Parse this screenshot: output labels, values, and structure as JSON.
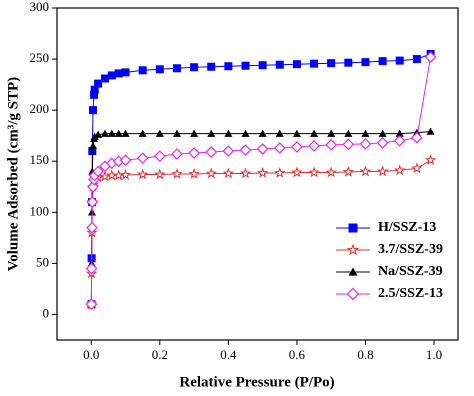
{
  "chart_data": {
    "type": "line",
    "x_label": "Relative Pressure (P/Po)",
    "y_label": "Volume Adsorbed (cm³/g STP)",
    "xlim": [
      -0.1,
      1.07
    ],
    "ylim": [
      -25,
      300
    ],
    "xticks": [
      {
        "value": 0,
        "label": "0.0"
      },
      {
        "value": 0.2,
        "label": "0.2"
      },
      {
        "value": 0.4,
        "label": "0.4"
      },
      {
        "value": 0.6,
        "label": "0.6"
      },
      {
        "value": 0.8,
        "label": "0.8"
      },
      {
        "value": 1,
        "label": "1.0"
      }
    ],
    "yticks": [
      0,
      50,
      100,
      150,
      200,
      250,
      300
    ],
    "legend": "lower right",
    "x": [
      0.0005,
      0.001,
      0.002,
      0.003,
      0.005,
      0.008,
      0.01,
      0.02,
      0.04,
      0.06,
      0.08,
      0.1,
      0.15,
      0.2,
      0.25,
      0.3,
      0.35,
      0.4,
      0.45,
      0.5,
      0.55,
      0.6,
      0.65,
      0.7,
      0.75,
      0.8,
      0.85,
      0.9,
      0.95,
      0.99
    ],
    "series": [
      {
        "name": "H/SSZ-13",
        "color": "#0000ff",
        "marker": "square",
        "values": [
          10,
          55,
          110,
          160,
          200,
          215,
          220,
          226,
          231,
          234,
          236,
          237,
          239,
          240,
          241,
          242,
          242.5,
          243,
          243.5,
          244,
          244.5,
          245,
          245.5,
          246,
          246.5,
          247,
          248,
          248.5,
          250,
          255
        ]
      },
      {
        "name": "3.7/SSZ-39",
        "color": "#e03030",
        "marker": "star",
        "values": [
          10,
          40,
          80,
          110,
          125,
          130,
          132,
          134,
          135,
          136,
          136,
          136.5,
          137,
          137,
          137.5,
          137.5,
          138,
          138,
          138,
          138.5,
          138.5,
          139,
          139,
          139,
          139.5,
          140,
          140,
          141,
          143,
          151
        ]
      },
      {
        "name": "Na/SSZ-39",
        "color": "#000000",
        "marker": "triangle",
        "values": [
          10,
          50,
          100,
          140,
          165,
          172,
          174,
          176,
          177,
          177,
          177,
          177,
          177,
          177,
          177,
          177,
          177,
          177,
          177,
          177,
          177,
          177,
          177,
          177,
          177,
          177,
          177,
          177,
          178,
          179
        ]
      },
      {
        "name": "2.5/SSZ-13",
        "color": "#ee22ee",
        "marker": "diamond",
        "values": [
          10,
          45,
          85,
          110,
          125,
          132,
          136,
          140,
          145,
          148,
          150,
          151,
          153,
          155,
          157,
          158,
          159,
          160,
          161,
          162,
          163,
          164,
          165,
          166,
          166.5,
          167,
          168,
          170,
          173,
          252
        ]
      }
    ]
  }
}
